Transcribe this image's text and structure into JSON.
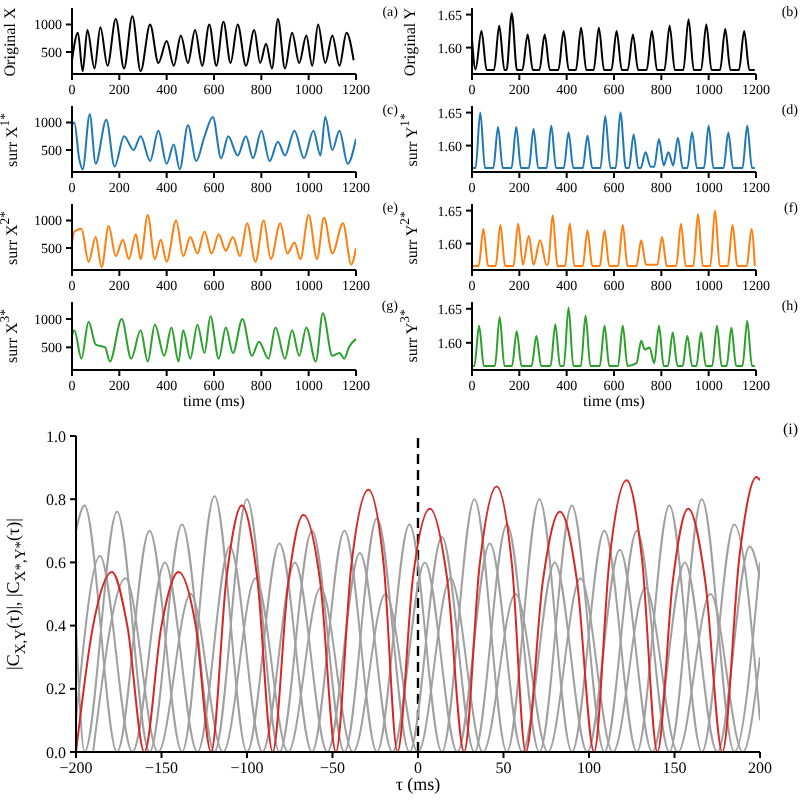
{
  "chart_data": [
    {
      "type": "line",
      "ylabel": "Original X",
      "annotations": [
        "(a)"
      ],
      "xlim": [
        0,
        1200
      ],
      "xticks": [
        0,
        200,
        400,
        600,
        800,
        1000,
        1200
      ],
      "ylim": [
        100,
        1300
      ],
      "yticks": [
        500,
        1000
      ],
      "series": [
        {
          "color": "#000000",
          "x": [
            0,
            25,
            45,
            65,
            95,
            120,
            150,
            185,
            220,
            255,
            290,
            330,
            365,
            400,
            430,
            460,
            490,
            520,
            550,
            580,
            610,
            640,
            670,
            700,
            735,
            770,
            795,
            820,
            845,
            870,
            900,
            930,
            960,
            990,
            1015,
            1040,
            1070,
            1100,
            1130,
            1160,
            1190
          ],
          "values": [
            350,
            850,
            150,
            900,
            200,
            950,
            250,
            1100,
            200,
            1150,
            150,
            1000,
            300,
            700,
            250,
            800,
            300,
            900,
            250,
            1000,
            250,
            1050,
            300,
            1000,
            250,
            900,
            300,
            650,
            200,
            1100,
            200,
            850,
            300,
            800,
            250,
            1000,
            300,
            800,
            250,
            850,
            350
          ]
        }
      ]
    },
    {
      "type": "line",
      "ylabel": "Original Y",
      "annotations": [
        "(b)"
      ],
      "xlim": [
        0,
        1200
      ],
      "xticks": [
        0,
        200,
        400,
        600,
        800,
        1000,
        1200
      ],
      "ylim": [
        1.56,
        1.66
      ],
      "yticks": [
        {
          "value": 1.6,
          "label": "1.60"
        },
        1.65
      ],
      "series": [
        {
          "color": "#000000",
          "x": [
            0,
            15,
            40,
            62,
            93,
            115,
            137,
            146,
            168,
            190,
            213,
            235,
            257,
            285,
            307,
            329,
            365,
            387,
            409,
            439,
            461,
            483,
            514,
            536,
            558,
            589,
            611,
            633,
            658,
            680,
            702,
            738,
            760,
            782,
            813,
            835,
            857,
            893,
            915,
            937,
            968,
            990,
            1012,
            1048,
            1070,
            1092,
            1128,
            1150,
            1172,
            1195
          ],
          "values": [
            1.612,
            1.567,
            1.625,
            1.566,
            1.566,
            1.633,
            1.566,
            1.566,
            1.652,
            1.566,
            1.566,
            1.62,
            1.566,
            1.566,
            1.62,
            1.566,
            1.566,
            1.625,
            1.566,
            1.566,
            1.63,
            1.566,
            1.566,
            1.63,
            1.566,
            1.566,
            1.625,
            1.566,
            1.566,
            1.62,
            1.566,
            1.566,
            1.625,
            1.566,
            1.566,
            1.633,
            1.566,
            1.566,
            1.643,
            1.566,
            1.566,
            1.635,
            1.566,
            1.566,
            1.628,
            1.566,
            1.566,
            1.625,
            1.566,
            1.566
          ]
        }
      ]
    },
    {
      "type": "line",
      "ylabel": "surr X$^{1*}$",
      "annotations": [
        "(c)"
      ],
      "xlim": [
        0,
        1200
      ],
      "xticks": [
        0,
        200,
        400,
        600,
        800,
        1000,
        1200
      ],
      "ylim": [
        100,
        1300
      ],
      "yticks": [
        500,
        1000
      ],
      "series": [
        {
          "color": "#1f77b4",
          "x": [
            0,
            10,
            30,
            45,
            75,
            100,
            145,
            180,
            220,
            260,
            290,
            330,
            365,
            400,
            430,
            455,
            490,
            525,
            560,
            595,
            630,
            660,
            700,
            735,
            765,
            800,
            835,
            870,
            900,
            940,
            980,
            1020,
            1050,
            1070,
            1100,
            1130,
            1165,
            1200
          ],
          "values": [
            950,
            1000,
            350,
            150,
            1150,
            250,
            1050,
            200,
            750,
            500,
            750,
            300,
            850,
            250,
            600,
            150,
            950,
            300,
            750,
            1100,
            350,
            750,
            400,
            750,
            350,
            850,
            300,
            650,
            400,
            850,
            350,
            850,
            400,
            1100,
            500,
            850,
            250,
            700
          ]
        }
      ]
    },
    {
      "type": "line",
      "ylabel": "surr Y$^{1*}$",
      "annotations": [
        "(d)"
      ],
      "xlim": [
        0,
        1200
      ],
      "xticks": [
        0,
        200,
        400,
        600,
        800,
        1000,
        1200
      ],
      "ylim": [
        1.56,
        1.66
      ],
      "yticks": [
        {
          "value": 1.6,
          "label": "1.60"
        },
        1.65
      ],
      "series": [
        {
          "color": "#1f77b4",
          "x": [
            0,
            15,
            35,
            55,
            90,
            110,
            130,
            167,
            187,
            207,
            240,
            260,
            280,
            315,
            335,
            355,
            388,
            408,
            428,
            468,
            488,
            508,
            543,
            563,
            585,
            607,
            627,
            650,
            663,
            683,
            703,
            713,
            733,
            755,
            770,
            790,
            810,
            830,
            850,
            870,
            890,
            910,
            930,
            950,
            980,
            1000,
            1020,
            1063,
            1083,
            1103,
            1143,
            1163,
            1183,
            1195
          ],
          "values": [
            1.566,
            1.566,
            1.65,
            1.566,
            1.566,
            1.628,
            1.566,
            1.566,
            1.628,
            1.566,
            1.566,
            1.625,
            1.566,
            1.566,
            1.63,
            1.566,
            1.566,
            1.62,
            1.566,
            1.566,
            1.615,
            1.566,
            1.566,
            1.645,
            1.566,
            1.566,
            1.65,
            1.566,
            1.566,
            1.617,
            1.566,
            1.566,
            1.59,
            1.568,
            1.568,
            1.61,
            1.57,
            1.59,
            1.57,
            1.612,
            1.566,
            1.566,
            1.62,
            1.566,
            1.566,
            1.63,
            1.566,
            1.566,
            1.62,
            1.566,
            1.566,
            1.63,
            1.566,
            1.566
          ]
        }
      ]
    },
    {
      "type": "line",
      "ylabel": "surr X$^{2*}$",
      "annotations": [
        "(e)"
      ],
      "xlim": [
        0,
        1200
      ],
      "xticks": [
        0,
        200,
        400,
        600,
        800,
        1000,
        1200
      ],
      "ylim": [
        100,
        1300
      ],
      "yticks": [
        500,
        1000
      ],
      "series": [
        {
          "color": "#ff7f0e",
          "x": [
            0,
            10,
            40,
            70,
            100,
            125,
            155,
            185,
            215,
            240,
            270,
            290,
            320,
            350,
            375,
            400,
            440,
            470,
            500,
            530,
            560,
            590,
            620,
            650,
            680,
            710,
            740,
            775,
            810,
            840,
            880,
            910,
            940,
            965,
            1000,
            1035,
            1065,
            1100,
            1145,
            1180,
            1200
          ],
          "values": [
            600,
            800,
            850,
            250,
            700,
            150,
            900,
            350,
            650,
            300,
            750,
            300,
            1100,
            300,
            650,
            250,
            1000,
            350,
            700,
            400,
            800,
            400,
            750,
            450,
            700,
            350,
            950,
            250,
            1000,
            300,
            950,
            400,
            600,
            300,
            1100,
            300,
            1050,
            400,
            950,
            200,
            500
          ]
        }
      ]
    },
    {
      "type": "line",
      "ylabel": "surr Y$^{2*}$",
      "annotations": [
        "(f)"
      ],
      "xlim": [
        0,
        1200
      ],
      "xticks": [
        0,
        200,
        400,
        600,
        800,
        1000,
        1200
      ],
      "ylim": [
        1.56,
        1.66
      ],
      "yticks": [
        {
          "value": 1.6,
          "label": "1.60"
        },
        1.65
      ],
      "series": [
        {
          "color": "#ff7f0e",
          "x": [
            0,
            28,
            48,
            68,
            100,
            120,
            140,
            175,
            195,
            215,
            240,
            260,
            288,
            315,
            321,
            341,
            361,
            393,
            413,
            433,
            468,
            488,
            508,
            540,
            560,
            580,
            617,
            637,
            657,
            695,
            715,
            735,
            783,
            803,
            823,
            863,
            883,
            903,
            935,
            955,
            975,
            1007,
            1027,
            1047,
            1081,
            1101,
            1121,
            1161,
            1181,
            1195
          ],
          "values": [
            1.566,
            1.566,
            1.622,
            1.566,
            1.566,
            1.628,
            1.566,
            1.566,
            1.63,
            1.568,
            1.612,
            1.568,
            1.605,
            1.568,
            1.568,
            1.643,
            1.566,
            1.566,
            1.63,
            1.566,
            1.566,
            1.62,
            1.566,
            1.566,
            1.62,
            1.566,
            1.566,
            1.628,
            1.566,
            1.566,
            1.605,
            1.568,
            1.568,
            1.61,
            1.566,
            1.566,
            1.63,
            1.566,
            1.566,
            1.645,
            1.566,
            1.566,
            1.65,
            1.566,
            1.566,
            1.628,
            1.566,
            1.566,
            1.622,
            1.566
          ]
        }
      ]
    },
    {
      "type": "line",
      "ylabel": "surr X$^{3*}$",
      "xlabel": "time (ms)",
      "annotations": [
        "(g)"
      ],
      "xlim": [
        0,
        1200
      ],
      "xticks": [
        0,
        200,
        400,
        600,
        800,
        1000,
        1200
      ],
      "ylim": [
        100,
        1300
      ],
      "yticks": [
        500,
        1000
      ],
      "series": [
        {
          "color": "#2ca02c",
          "x": [
            0,
            10,
            40,
            70,
            100,
            140,
            160,
            210,
            250,
            290,
            320,
            350,
            390,
            420,
            450,
            470,
            500,
            530,
            560,
            585,
            620,
            650,
            680,
            720,
            760,
            790,
            830,
            860,
            900,
            930,
            960,
            990,
            1030,
            1060,
            1100,
            1130,
            1150,
            1170,
            1200
          ],
          "values": [
            700,
            800,
            300,
            950,
            550,
            500,
            250,
            1000,
            300,
            800,
            250,
            900,
            350,
            850,
            250,
            800,
            300,
            900,
            400,
            1050,
            300,
            850,
            400,
            1000,
            350,
            600,
            300,
            850,
            300,
            800,
            350,
            850,
            250,
            1100,
            350,
            400,
            300,
            500,
            650
          ]
        }
      ]
    },
    {
      "type": "line",
      "ylabel": "surr Y$^{3*}$",
      "xlabel": "time (ms)",
      "annotations": [
        "(h)"
      ],
      "xlim": [
        0,
        1200
      ],
      "xticks": [
        0,
        200,
        400,
        600,
        800,
        1000,
        1200
      ],
      "ylim": [
        1.56,
        1.66
      ],
      "yticks": [
        {
          "value": 1.6,
          "label": "1.60"
        },
        1.65
      ],
      "series": [
        {
          "color": "#2ca02c",
          "x": [
            0,
            10,
            30,
            50,
            97,
            117,
            137,
            169,
            189,
            209,
            252,
            272,
            292,
            332,
            352,
            372,
            388,
            408,
            428,
            460,
            480,
            500,
            540,
            560,
            580,
            617,
            637,
            657,
            695,
            715,
            730,
            750,
            770,
            790,
            810,
            828,
            848,
            868,
            890,
            910,
            930,
            948,
            968,
            988,
            1015,
            1035,
            1055,
            1076,
            1096,
            1116,
            1143,
            1163,
            1183,
            1195
          ],
          "values": [
            1.566,
            1.566,
            1.625,
            1.566,
            1.566,
            1.638,
            1.566,
            1.566,
            1.617,
            1.566,
            1.566,
            1.61,
            1.566,
            1.566,
            1.627,
            1.566,
            1.566,
            1.652,
            1.566,
            1.566,
            1.64,
            1.566,
            1.566,
            1.625,
            1.566,
            1.566,
            1.625,
            1.566,
            1.57,
            1.603,
            1.59,
            1.593,
            1.57,
            1.625,
            1.566,
            1.566,
            1.615,
            1.566,
            1.566,
            1.61,
            1.566,
            1.566,
            1.615,
            1.566,
            1.566,
            1.625,
            1.566,
            1.566,
            1.622,
            1.566,
            1.566,
            1.632,
            1.566,
            1.566
          ]
        }
      ]
    },
    {
      "type": "line",
      "ylabel": "|C$_{X,Y}$(τ)|, |C$_{X*,Y*}$(τ)|",
      "xlabel": "τ (ms)",
      "annotations": [
        "(i)"
      ],
      "xlim": [
        -200,
        200
      ],
      "xticks": [
        {
          "value": -200,
          "label": "−200"
        },
        {
          "value": -150,
          "label": "−150"
        },
        {
          "value": -100,
          "label": "−100"
        },
        {
          "value": -50,
          "label": "−50"
        },
        0,
        50,
        100,
        150,
        200
      ],
      "ylim": [
        0,
        1
      ],
      "yticks": [
        {
          "value": 0,
          "label": "0.0"
        },
        {
          "value": 0.2,
          "label": "0.2"
        },
        {
          "value": 0.4,
          "label": "0.4"
        },
        {
          "value": 0.6,
          "label": "0.6"
        },
        {
          "value": 0.8,
          "label": "0.8"
        },
        {
          "value": 1,
          "label": "1.0"
        }
      ],
      "ref_lines": [
        {
          "axis": "x",
          "value": 0,
          "color": "#000000",
          "line_style": "dashed"
        }
      ],
      "series": [
        {
          "color": "#a0a0a0",
          "x": [
            -200,
            -195,
            -176,
            -157,
            -138,
            -119,
            -100,
            -81,
            -62,
            -43,
            -24,
            -5,
            14,
            33,
            52,
            71,
            90,
            109,
            128,
            147,
            166,
            185,
            200
          ],
          "values": [
            0.4,
            0,
            0.76,
            0,
            0.72,
            0,
            0.8,
            0,
            0.7,
            0,
            0.74,
            0,
            0.68,
            0,
            0.72,
            0,
            0.78,
            0,
            0.7,
            0,
            0.8,
            0,
            0.6
          ]
        },
        {
          "color": "#a0a0a0",
          "x": [
            -200,
            -195,
            -176,
            -157,
            -138,
            -119,
            -100,
            -81,
            -62,
            -43,
            -24,
            -5,
            14,
            33,
            52,
            71,
            90,
            109,
            128,
            147,
            166,
            185,
            200
          ],
          "values": [
            0.7,
            0.78,
            0,
            0.7,
            0,
            0.81,
            0,
            0.66,
            0,
            0.7,
            0,
            0.72,
            0,
            0.8,
            0,
            0.8,
            0,
            0.7,
            0,
            0.78,
            0,
            0.72,
            0.1
          ]
        },
        {
          "color": "#a0a0a0",
          "x": [
            -200,
            -186,
            -167,
            -148,
            -129,
            -110,
            -91,
            -72,
            -53,
            -34,
            -15,
            4,
            23,
            42,
            61,
            80,
            99,
            118,
            137,
            156,
            175,
            194,
            200
          ],
          "values": [
            0.1,
            0.62,
            0,
            0.6,
            0,
            0.65,
            0,
            0.6,
            0,
            0.63,
            0,
            0.6,
            0,
            0.66,
            0,
            0.6,
            0,
            0.64,
            0,
            0.6,
            0,
            0.65,
            0.55
          ]
        },
        {
          "color": "#a0a0a0",
          "x": [
            -190,
            -171,
            -152,
            -133,
            -114,
            -95,
            -76,
            -57,
            -38,
            -19,
            0,
            19,
            38,
            57,
            76,
            95,
            114,
            133,
            152,
            171,
            190,
            200
          ],
          "values": [
            0,
            0.55,
            0,
            0.5,
            0,
            0.55,
            0,
            0.52,
            0,
            0.5,
            0,
            0.55,
            0,
            0.5,
            0,
            0.55,
            0,
            0.52,
            0,
            0.5,
            0,
            0.3
          ]
        },
        {
          "color": "#d62728",
          "x": [
            -200,
            -190,
            -179,
            -170,
            -160,
            -150,
            -140,
            -130,
            -121,
            -112,
            -103,
            -94,
            -85,
            -76,
            -67,
            -57,
            -48,
            -39,
            -29,
            -20,
            -12,
            -3,
            7,
            17,
            27,
            36,
            46,
            55,
            63,
            73,
            83,
            93,
            103,
            112,
            122,
            131,
            140,
            149,
            158,
            168,
            178,
            188,
            198,
            200
          ],
          "values": [
            0,
            0.4,
            0.57,
            0.4,
            0,
            0.4,
            0.57,
            0.4,
            0,
            0.55,
            0.78,
            0.55,
            0,
            0.53,
            0.75,
            0.53,
            0,
            0.59,
            0.83,
            0.59,
            0,
            0.55,
            0.77,
            0.55,
            0,
            0.59,
            0.84,
            0.59,
            0,
            0.54,
            0.76,
            0.54,
            0,
            0.61,
            0.86,
            0.61,
            0,
            0.54,
            0.77,
            0.54,
            0,
            0.62,
            0.87,
            0.86
          ]
        }
      ]
    }
  ]
}
